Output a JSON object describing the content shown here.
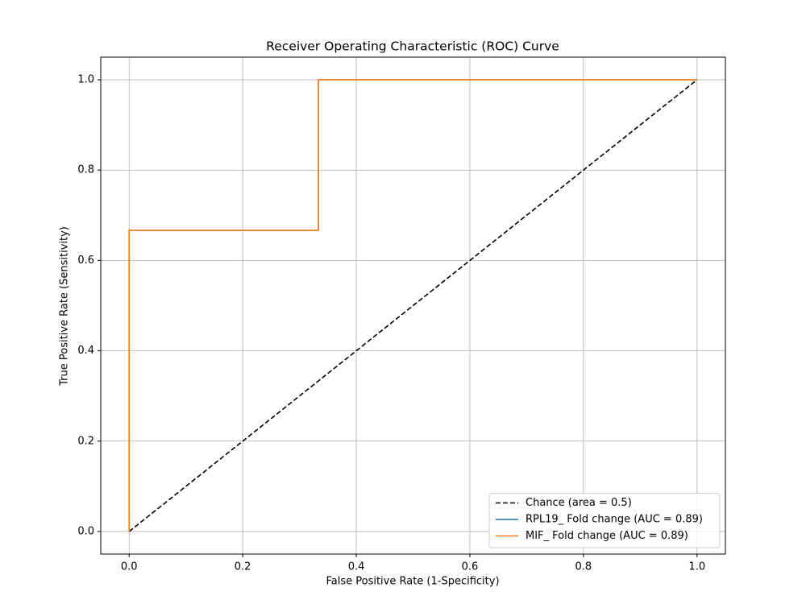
{
  "chart_data": {
    "type": "line",
    "title": "Receiver Operating Characteristic (ROC) Curve",
    "xlabel": "False Positive Rate (1-Specificity)",
    "ylabel": "True Positive Rate (Sensitivity)",
    "series": [
      {
        "name": "Chance (area = 0.5)",
        "color": "#000000",
        "linestyle": "dashed",
        "x": [
          0,
          1
        ],
        "values": [
          0,
          1
        ]
      },
      {
        "name": "RPL19_ Fold change (AUC = 0.89)",
        "color": "#1f77b4",
        "linestyle": "solid",
        "x": [
          0,
          0,
          0.3333,
          0.3333,
          1
        ],
        "values": [
          0,
          0.6667,
          0.6667,
          1,
          1
        ]
      },
      {
        "name": "MIF_ Fold change (AUC = 0.89)",
        "color": "#ff7f0e",
        "linestyle": "solid",
        "x": [
          0,
          0,
          0.3333,
          0.3333,
          1
        ],
        "values": [
          0,
          0.6667,
          0.6667,
          1,
          1
        ]
      }
    ],
    "xlim": [
      -0.05,
      1.05
    ],
    "ylim": [
      -0.05,
      1.05
    ],
    "xticks": [
      {
        "value": 0,
        "label": "0.0"
      },
      0.2,
      0.4,
      0.6,
      0.8,
      {
        "value": 1,
        "label": "1.0"
      }
    ],
    "yticks": [
      {
        "value": 0,
        "label": "0.0"
      },
      0.2,
      0.4,
      0.6,
      0.8,
      {
        "value": 1,
        "label": "1.0"
      }
    ],
    "grid": true,
    "legend": "lower right"
  }
}
